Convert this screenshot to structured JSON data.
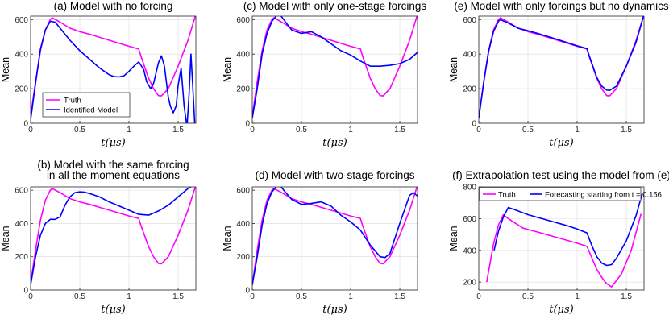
{
  "figure": {
    "xlabel_var": "t",
    "xlabel_unit": "(μs)"
  },
  "chart_data": [
    {
      "id": "a",
      "type": "line",
      "title": [
        "(a) Model with no forcing"
      ],
      "ylabel": "Mean",
      "xlabel": "t(μs)",
      "xlim": [
        0,
        1.68
      ],
      "ylim": [
        0,
        620
      ],
      "xticks": [
        0,
        0.5,
        1,
        1.5
      ],
      "yticks": [
        0,
        200,
        400,
        600
      ],
      "legend": {
        "position": "bottom-left",
        "entries": [
          "Truth",
          "Identified Model"
        ]
      },
      "series": [
        {
          "name": "Truth",
          "color": "#ff00ff",
          "x": [
            0.0,
            0.05,
            0.1,
            0.15,
            0.2,
            0.22,
            0.3,
            0.4,
            0.5,
            0.6,
            0.8,
            1.0,
            1.1,
            1.12,
            1.2,
            1.25,
            1.3,
            1.33,
            1.4,
            1.5,
            1.6,
            1.68
          ],
          "y": [
            40,
            240,
            420,
            540,
            600,
            610,
            585,
            550,
            530,
            515,
            480,
            445,
            430,
            390,
            260,
            200,
            160,
            158,
            200,
            330,
            480,
            630
          ]
        },
        {
          "name": "Identified Model",
          "color": "#0000ff",
          "x": [
            0.0,
            0.05,
            0.1,
            0.15,
            0.2,
            0.25,
            0.3,
            0.4,
            0.5,
            0.6,
            0.7,
            0.8,
            0.85,
            0.9,
            0.95,
            1.0,
            1.05,
            1.1,
            1.15,
            1.18,
            1.22,
            1.25,
            1.3,
            1.33,
            1.36,
            1.4,
            1.42,
            1.45,
            1.48,
            1.5,
            1.53,
            1.56,
            1.59,
            1.61,
            1.63,
            1.65,
            1.67
          ],
          "y": [
            20,
            230,
            430,
            540,
            590,
            585,
            550,
            480,
            420,
            370,
            320,
            280,
            270,
            268,
            275,
            300,
            330,
            355,
            310,
            240,
            200,
            230,
            350,
            390,
            330,
            150,
            100,
            60,
            100,
            220,
            320,
            100,
            -20,
            160,
            400,
            200,
            -20
          ]
        }
      ]
    },
    {
      "id": "c",
      "type": "line",
      "title": [
        "(c) Model with only one-stage forcings"
      ],
      "ylabel": "Mean",
      "xlabel": "t(μs)",
      "xlim": [
        0,
        1.68
      ],
      "ylim": [
        0,
        620
      ],
      "xticks": [
        0,
        0.5,
        1,
        1.5
      ],
      "yticks": [
        0,
        200,
        400,
        600
      ],
      "series": [
        {
          "name": "Truth",
          "color": "#ff00ff",
          "x": [
            0.0,
            0.05,
            0.1,
            0.15,
            0.2,
            0.22,
            0.3,
            0.4,
            0.5,
            0.6,
            0.8,
            1.0,
            1.1,
            1.12,
            1.2,
            1.25,
            1.3,
            1.33,
            1.4,
            1.5,
            1.6,
            1.68
          ],
          "y": [
            40,
            240,
            420,
            540,
            600,
            610,
            585,
            550,
            530,
            515,
            480,
            445,
            430,
            390,
            260,
            200,
            160,
            158,
            200,
            330,
            480,
            630
          ]
        },
        {
          "name": "Identified Model",
          "color": "#0000ff",
          "x": [
            0.0,
            0.05,
            0.1,
            0.15,
            0.2,
            0.25,
            0.28,
            0.32,
            0.4,
            0.5,
            0.6,
            0.7,
            0.8,
            0.9,
            1.0,
            1.1,
            1.2,
            1.3,
            1.4,
            1.5,
            1.6,
            1.68
          ],
          "y": [
            30,
            200,
            400,
            520,
            590,
            625,
            630,
            600,
            540,
            520,
            530,
            500,
            460,
            420,
            395,
            360,
            330,
            330,
            335,
            345,
            370,
            410
          ]
        }
      ]
    },
    {
      "id": "e",
      "type": "line",
      "title": [
        "(e) Model with only forcings but no dynamics"
      ],
      "ylabel": "Mean",
      "xlabel": "t(μs)",
      "xlim": [
        0,
        1.68
      ],
      "ylim": [
        0,
        620
      ],
      "xticks": [
        0,
        0.5,
        1,
        1.5
      ],
      "yticks": [
        0,
        200,
        400,
        600
      ],
      "series": [
        {
          "name": "Truth",
          "color": "#ff00ff",
          "x": [
            0.0,
            0.05,
            0.1,
            0.15,
            0.2,
            0.22,
            0.3,
            0.4,
            0.5,
            0.6,
            0.8,
            1.0,
            1.1,
            1.12,
            1.2,
            1.25,
            1.3,
            1.33,
            1.4,
            1.5,
            1.6,
            1.68
          ],
          "y": [
            30,
            240,
            420,
            540,
            600,
            610,
            585,
            550,
            530,
            515,
            480,
            445,
            430,
            390,
            260,
            200,
            160,
            158,
            200,
            330,
            480,
            630
          ]
        },
        {
          "name": "Identified Model",
          "color": "#0000ff",
          "x": [
            0.0,
            0.05,
            0.1,
            0.15,
            0.2,
            0.22,
            0.3,
            0.4,
            0.5,
            0.6,
            0.8,
            1.0,
            1.1,
            1.12,
            1.2,
            1.25,
            1.3,
            1.33,
            1.4,
            1.5,
            1.6,
            1.68
          ],
          "y": [
            30,
            235,
            415,
            530,
            590,
            600,
            580,
            550,
            535,
            520,
            485,
            448,
            432,
            395,
            265,
            215,
            192,
            190,
            215,
            330,
            470,
            630
          ]
        }
      ]
    },
    {
      "id": "b",
      "type": "line",
      "title": [
        "(b) Model with the same forcing",
        "in all the moment equations"
      ],
      "ylabel": "Mean",
      "xlabel": "t(μs)",
      "xlim": [
        0,
        1.68
      ],
      "ylim": [
        0,
        620
      ],
      "xticks": [
        0,
        0.5,
        1,
        1.5
      ],
      "yticks": [
        0,
        200,
        400,
        600
      ],
      "series": [
        {
          "name": "Truth",
          "color": "#ff00ff",
          "x": [
            0.0,
            0.05,
            0.1,
            0.15,
            0.2,
            0.22,
            0.3,
            0.4,
            0.5,
            0.6,
            0.8,
            1.0,
            1.1,
            1.12,
            1.2,
            1.25,
            1.3,
            1.33,
            1.4,
            1.5,
            1.6,
            1.68
          ],
          "y": [
            40,
            240,
            420,
            540,
            600,
            610,
            585,
            550,
            530,
            515,
            480,
            445,
            430,
            390,
            260,
            200,
            160,
            158,
            200,
            330,
            480,
            630
          ]
        },
        {
          "name": "Identified Model",
          "color": "#0000ff",
          "x": [
            0.0,
            0.05,
            0.1,
            0.15,
            0.2,
            0.25,
            0.3,
            0.35,
            0.4,
            0.45,
            0.5,
            0.55,
            0.6,
            0.7,
            0.8,
            0.9,
            1.0,
            1.1,
            1.2,
            1.3,
            1.4,
            1.5,
            1.6,
            1.68
          ],
          "y": [
            30,
            200,
            330,
            400,
            425,
            425,
            440,
            510,
            560,
            585,
            590,
            588,
            580,
            560,
            530,
            505,
            480,
            455,
            450,
            475,
            510,
            560,
            610,
            640
          ]
        }
      ]
    },
    {
      "id": "d",
      "type": "line",
      "title": [
        "(d) Model with two-stage forcings"
      ],
      "ylabel": "Mean",
      "xlabel": "t(μs)",
      "xlim": [
        0,
        1.68
      ],
      "ylim": [
        0,
        620
      ],
      "xticks": [
        0,
        0.5,
        1,
        1.5
      ],
      "yticks": [
        0,
        200,
        400,
        600
      ],
      "series": [
        {
          "name": "Truth",
          "color": "#ff00ff",
          "x": [
            0.0,
            0.05,
            0.1,
            0.15,
            0.2,
            0.22,
            0.3,
            0.4,
            0.5,
            0.6,
            0.8,
            1.0,
            1.1,
            1.12,
            1.2,
            1.25,
            1.3,
            1.33,
            1.4,
            1.5,
            1.6,
            1.68
          ],
          "y": [
            30,
            240,
            420,
            540,
            600,
            610,
            585,
            550,
            530,
            515,
            480,
            445,
            430,
            390,
            260,
            200,
            160,
            158,
            200,
            330,
            480,
            630
          ]
        },
        {
          "name": "Identified Model",
          "color": "#0000ff",
          "x": [
            0.0,
            0.05,
            0.1,
            0.15,
            0.2,
            0.25,
            0.28,
            0.32,
            0.4,
            0.5,
            0.6,
            0.7,
            0.8,
            0.9,
            1.0,
            1.1,
            1.2,
            1.3,
            1.35,
            1.4,
            1.5,
            1.6,
            1.64,
            1.68
          ],
          "y": [
            30,
            200,
            390,
            520,
            590,
            625,
            630,
            600,
            545,
            515,
            520,
            530,
            505,
            450,
            410,
            360,
            270,
            200,
            195,
            220,
            400,
            570,
            585,
            565
          ]
        }
      ]
    },
    {
      "id": "f",
      "type": "line",
      "title": [
        "(f) Extrapolation test using the model from (e)"
      ],
      "ylabel": "Mean",
      "xlabel": "t(μs)",
      "xlim": [
        0,
        1.68
      ],
      "ylim": [
        150,
        800
      ],
      "xticks": [
        0,
        0.5,
        1,
        1.5
      ],
      "yticks": [
        200,
        400,
        600,
        800
      ],
      "legend": {
        "position": "top",
        "entries": [
          "Truth",
          "Forecasting starting from t = 0.156"
        ]
      },
      "series": [
        {
          "name": "Truth",
          "color": "#ff00ff",
          "x": [
            0.08,
            0.15,
            0.2,
            0.25,
            0.3,
            0.45,
            0.6,
            0.8,
            1.0,
            1.1,
            1.2,
            1.25,
            1.3,
            1.35,
            1.45,
            1.55,
            1.65
          ],
          "y": [
            200,
            440,
            560,
            625,
            600,
            540,
            515,
            480,
            445,
            425,
            280,
            230,
            190,
            170,
            250,
            400,
            630
          ]
        },
        {
          "name": "Forecasting starting from t = 0.156",
          "color": "#0000ff",
          "x": [
            0.156,
            0.2,
            0.25,
            0.3,
            0.35,
            0.5,
            0.7,
            0.9,
            1.0,
            1.1,
            1.15,
            1.2,
            1.25,
            1.3,
            1.35,
            1.4,
            1.5,
            1.6,
            1.66
          ],
          "y": [
            400,
            520,
            610,
            670,
            660,
            625,
            590,
            555,
            535,
            510,
            430,
            360,
            320,
            305,
            310,
            350,
            460,
            620,
            755
          ]
        }
      ]
    }
  ]
}
